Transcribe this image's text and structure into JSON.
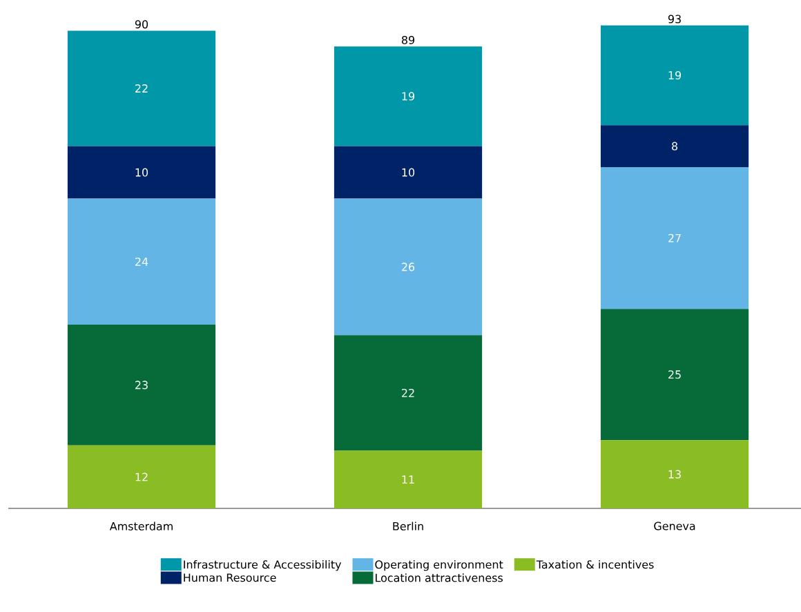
{
  "chart_data": {
    "type": "bar",
    "stacked": true,
    "data_labels": true,
    "legend": "bottom",
    "categories": [
      "Amsterdam",
      "Berlin",
      "Geneva"
    ],
    "series": [
      {
        "name": "Taxation & incentives",
        "color": "#8abd24",
        "values": [
          12,
          11,
          13
        ]
      },
      {
        "name": "Location attractiveness",
        "color": "#066b38",
        "values": [
          23,
          22,
          25
        ]
      },
      {
        "name": "Operating environment",
        "color": "#62b5e5",
        "values": [
          24,
          26,
          27
        ]
      },
      {
        "name": "Human Resource",
        "color": "#002266",
        "values": [
          10,
          10,
          8
        ]
      },
      {
        "name": "Infrastructure & Accessibility",
        "color": "#0097a9",
        "values": [
          22,
          19,
          19
        ]
      }
    ],
    "totals": [
      "90",
      "89",
      "93"
    ]
  }
}
